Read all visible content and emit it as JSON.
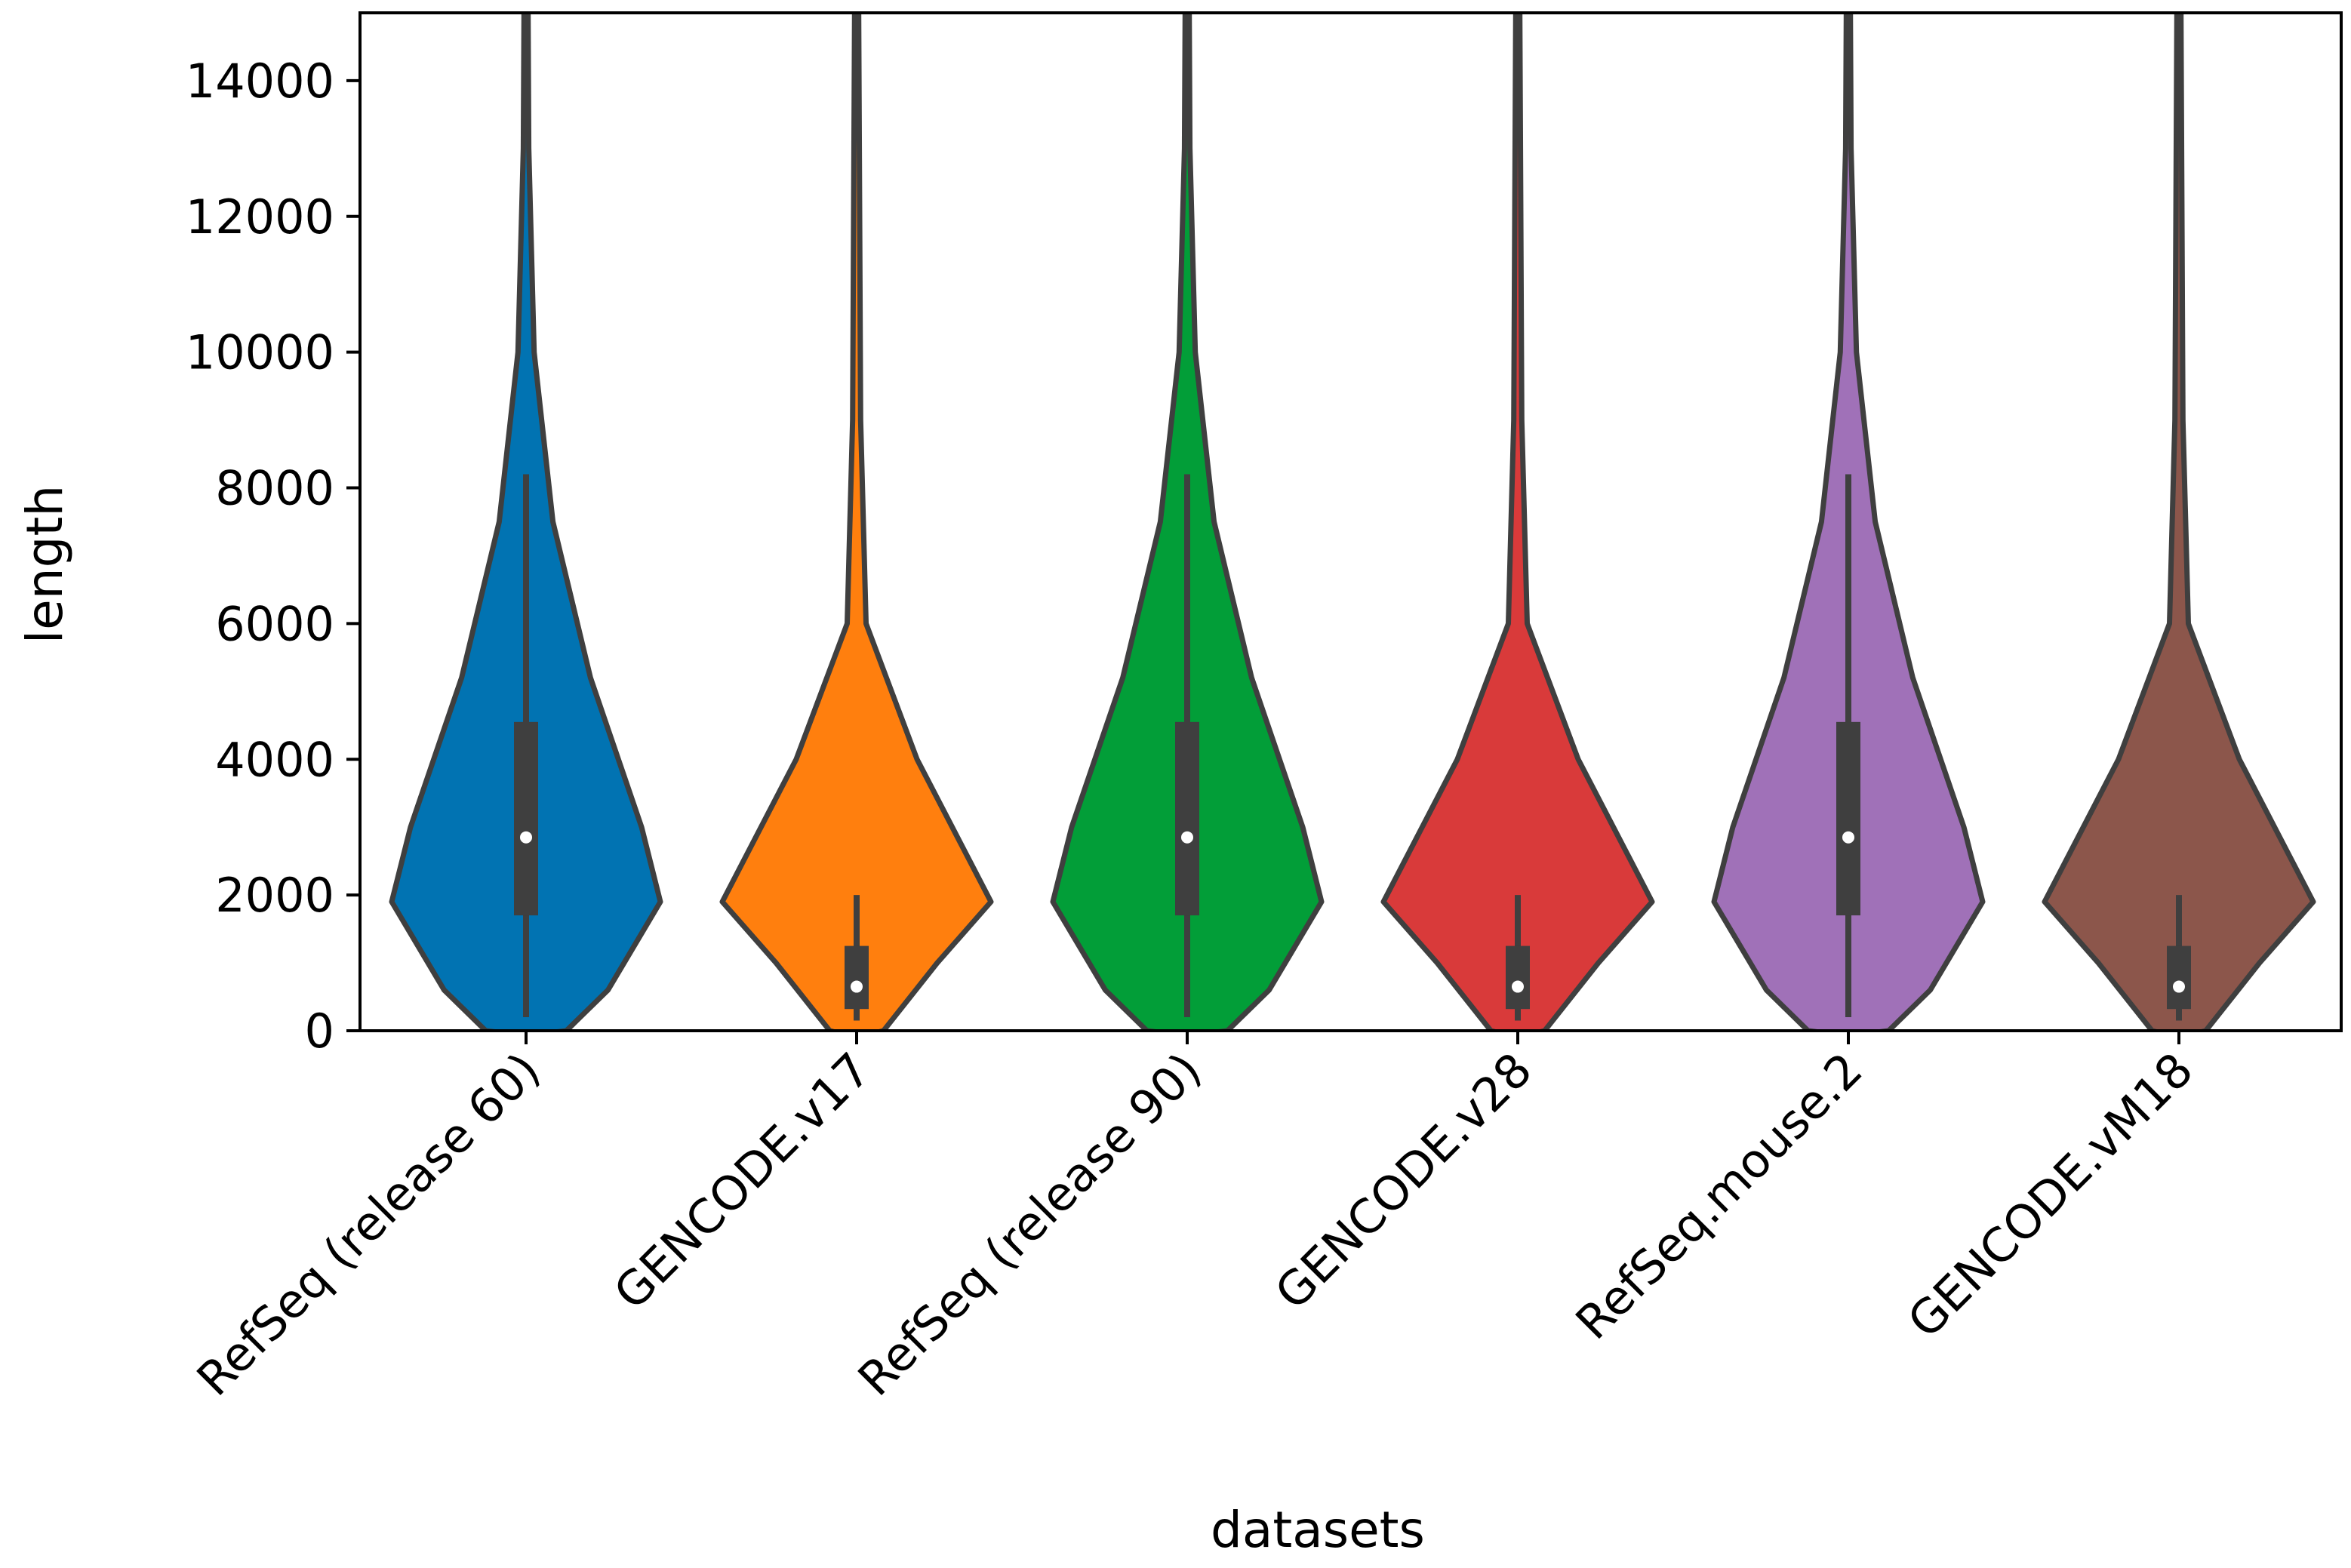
{
  "chart_data": {
    "type": "violin",
    "title": "",
    "xlabel": "datasets",
    "ylabel": "length",
    "ylim": [
      0,
      15000
    ],
    "yticks": [
      0,
      2000,
      4000,
      6000,
      8000,
      10000,
      12000,
      14000
    ],
    "ytick_labels": [
      "0",
      "2000",
      "4000",
      "6000",
      "8000",
      "10000",
      "12000",
      "14000"
    ],
    "grid": false,
    "legend": "none",
    "categories": [
      "RefSeq (release 60)",
      "GENCODE.v17",
      "RefSeq (release 90)",
      "GENCODE.v28",
      "RefSeq.mouse.2",
      "GENCODE.vM18"
    ],
    "series": [
      {
        "name": "RefSeq (release 60)",
        "color": "#0173b2",
        "median": 2850,
        "q1": 1700,
        "q3": 4550,
        "whisker_low": 200,
        "whisker_high": 8200,
        "profile": [
          [
            -50,
            0.1
          ],
          [
            0,
            0.3
          ],
          [
            600,
            0.61
          ],
          [
            1900,
            1.0
          ],
          [
            3000,
            0.86
          ],
          [
            5200,
            0.48
          ],
          [
            7500,
            0.2
          ],
          [
            10000,
            0.06
          ],
          [
            13000,
            0.02
          ],
          [
            15000,
            0.015
          ]
        ]
      },
      {
        "name": "GENCODE.v17",
        "color": "#ff7f0e",
        "median": 650,
        "q1": 320,
        "q3": 1250,
        "whisker_low": 150,
        "whisker_high": 2000,
        "profile": [
          [
            -50,
            0.1
          ],
          [
            0,
            0.2
          ],
          [
            1000,
            0.6
          ],
          [
            1900,
            1.0
          ],
          [
            4000,
            0.45
          ],
          [
            6000,
            0.07
          ],
          [
            9000,
            0.03
          ],
          [
            15000,
            0.015
          ]
        ]
      },
      {
        "name": "RefSeq (release 90)",
        "color": "#029e38",
        "median": 2850,
        "q1": 1700,
        "q3": 4550,
        "whisker_low": 200,
        "whisker_high": 8200,
        "profile": [
          [
            -50,
            0.1
          ],
          [
            0,
            0.3
          ],
          [
            600,
            0.61
          ],
          [
            1900,
            1.0
          ],
          [
            3000,
            0.86
          ],
          [
            5200,
            0.48
          ],
          [
            7500,
            0.2
          ],
          [
            10000,
            0.06
          ],
          [
            13000,
            0.02
          ],
          [
            15000,
            0.015
          ]
        ]
      },
      {
        "name": "GENCODE.v28",
        "color": "#d93a3a",
        "median": 650,
        "q1": 320,
        "q3": 1250,
        "whisker_low": 150,
        "whisker_high": 2000,
        "profile": [
          [
            -50,
            0.1
          ],
          [
            0,
            0.2
          ],
          [
            1000,
            0.6
          ],
          [
            1900,
            1.0
          ],
          [
            4000,
            0.45
          ],
          [
            6000,
            0.07
          ],
          [
            9000,
            0.03
          ],
          [
            15000,
            0.015
          ]
        ]
      },
      {
        "name": "RefSeq.mouse.2",
        "color": "#a071b8",
        "median": 2850,
        "q1": 1700,
        "q3": 4550,
        "whisker_low": 200,
        "whisker_high": 8200,
        "profile": [
          [
            -50,
            0.1
          ],
          [
            0,
            0.3
          ],
          [
            600,
            0.61
          ],
          [
            1900,
            1.0
          ],
          [
            3000,
            0.86
          ],
          [
            5200,
            0.48
          ],
          [
            7500,
            0.2
          ],
          [
            10000,
            0.06
          ],
          [
            13000,
            0.02
          ],
          [
            15000,
            0.015
          ]
        ]
      },
      {
        "name": "GENCODE.vM18",
        "color": "#8c564b",
        "median": 650,
        "q1": 320,
        "q3": 1250,
        "whisker_low": 150,
        "whisker_high": 2000,
        "profile": [
          [
            -50,
            0.1
          ],
          [
            0,
            0.2
          ],
          [
            1000,
            0.6
          ],
          [
            1900,
            1.0
          ],
          [
            4000,
            0.45
          ],
          [
            6000,
            0.07
          ],
          [
            9000,
            0.03
          ],
          [
            15000,
            0.015
          ]
        ]
      }
    ]
  }
}
